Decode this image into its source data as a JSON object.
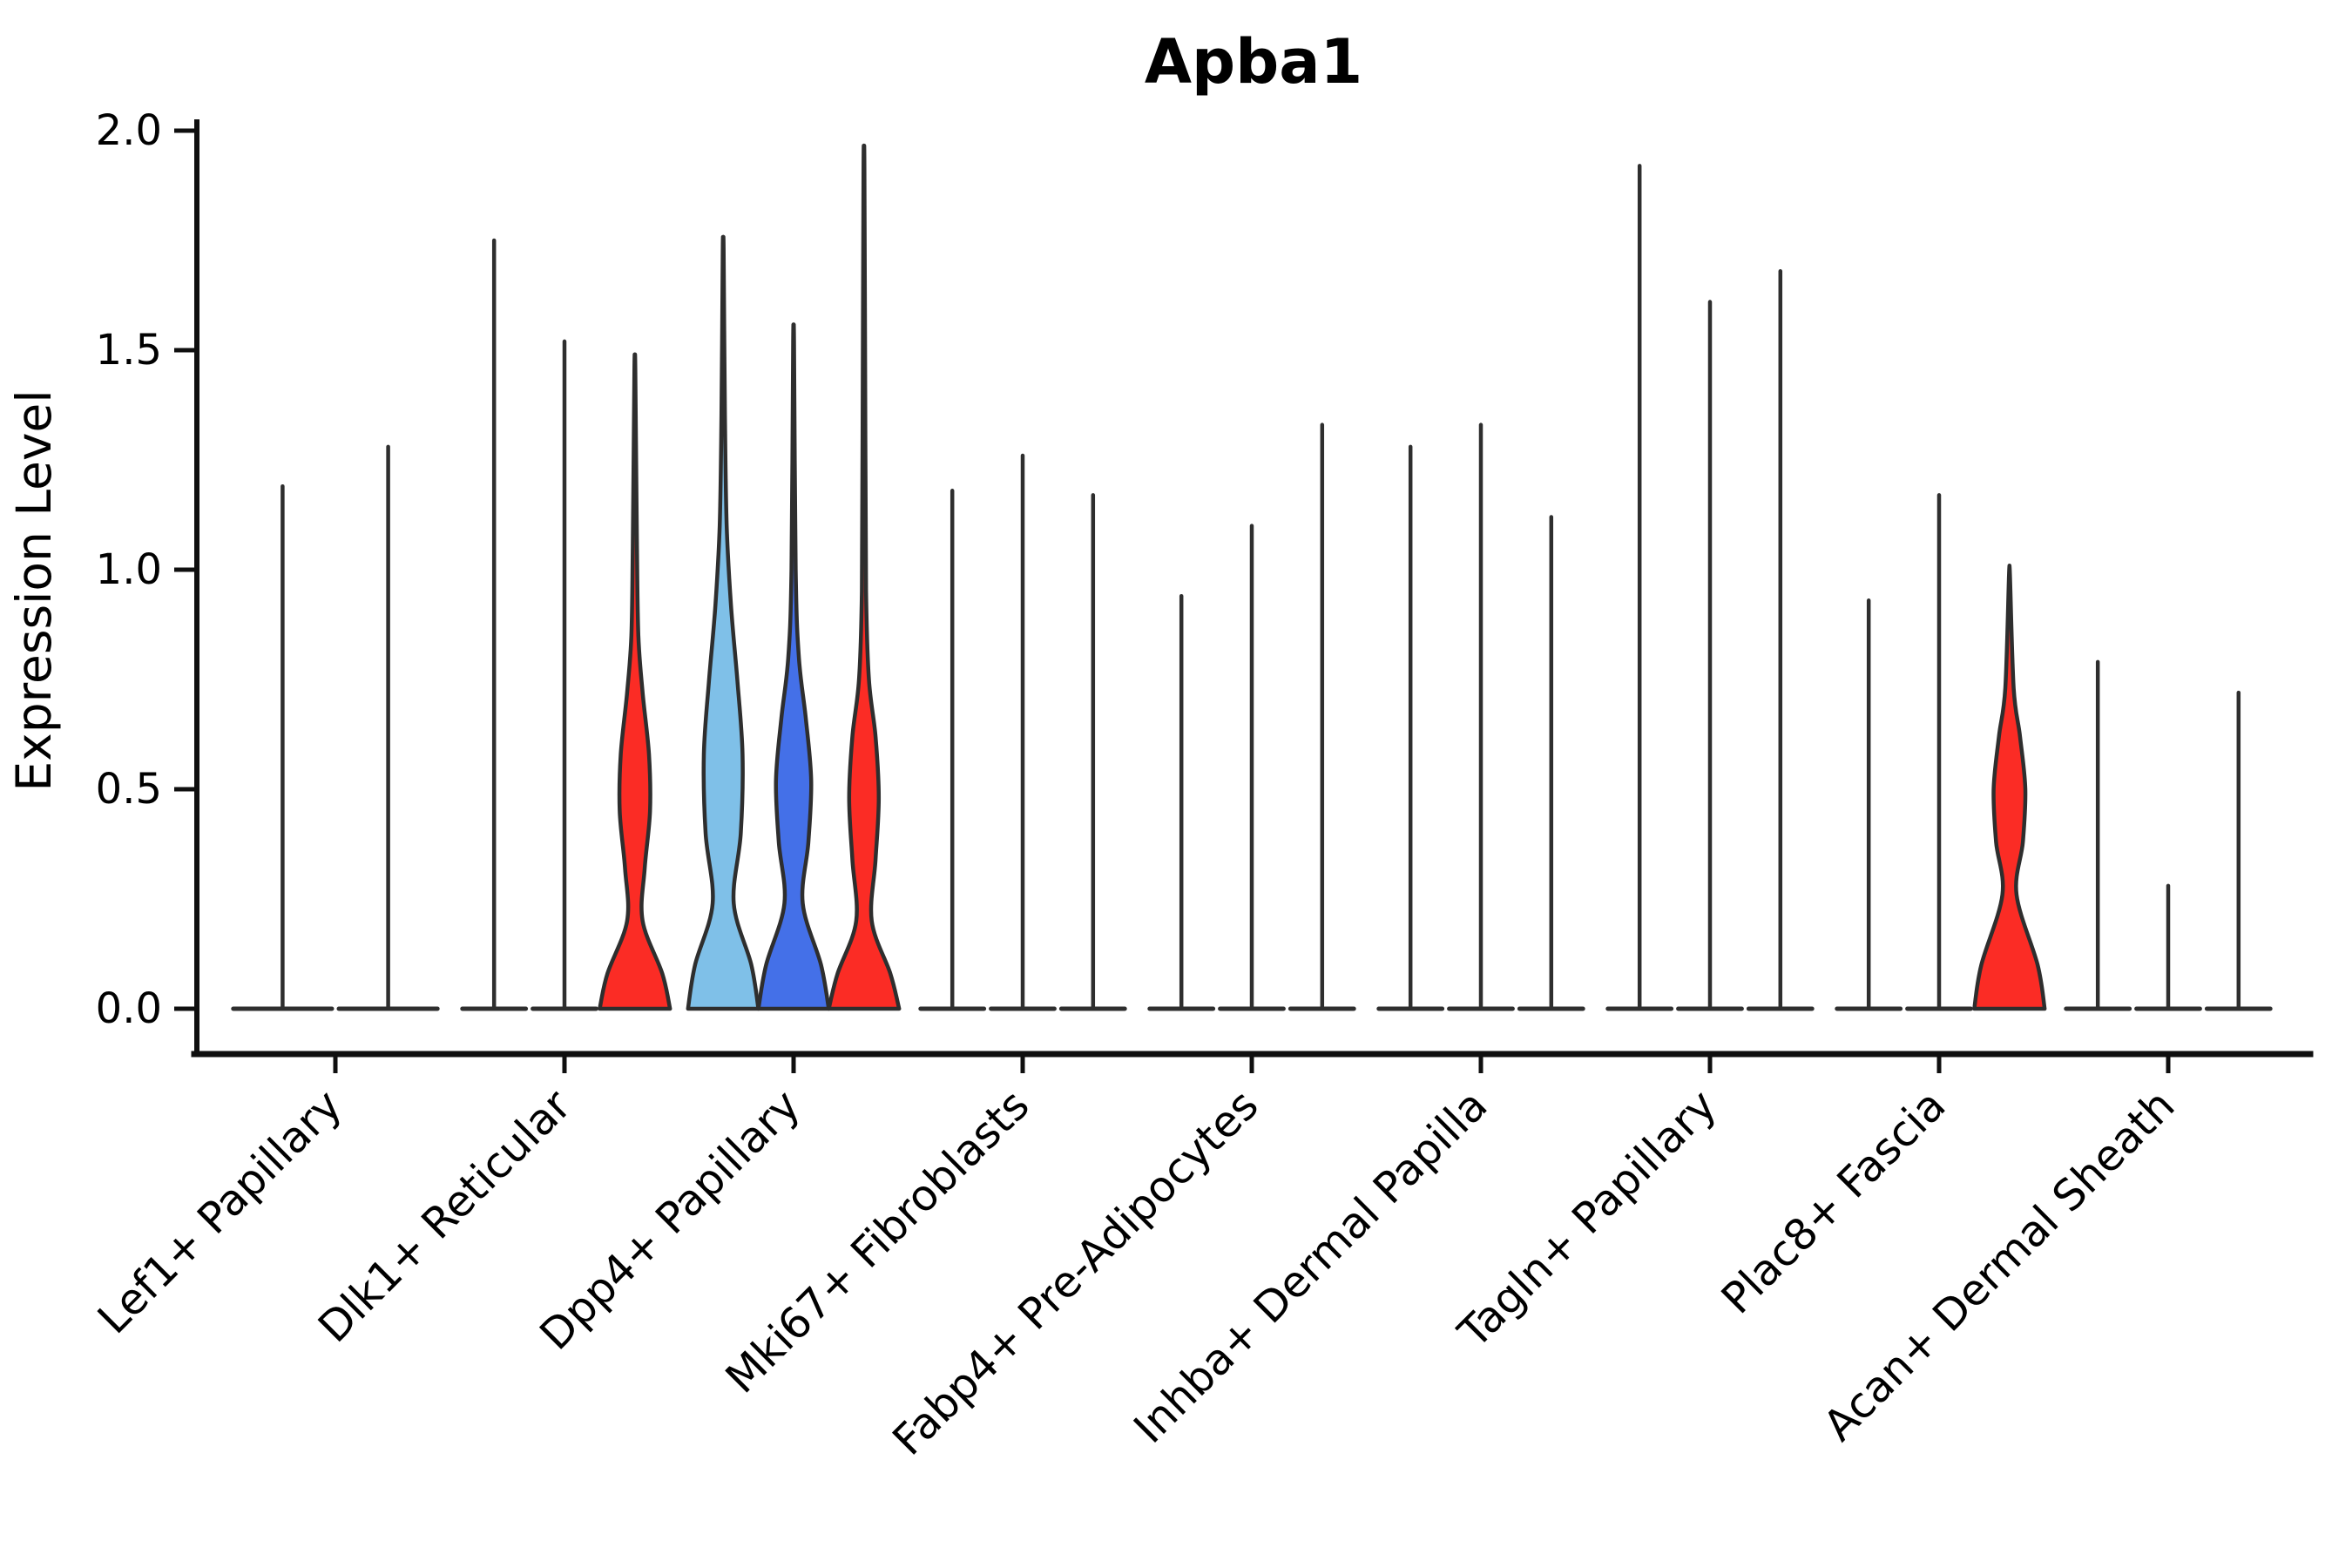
{
  "title": "Apba1",
  "ylabel": "Expression Level",
  "ytick_labels": [
    "0.0",
    "0.5",
    "1.0",
    "1.5",
    "2.0"
  ],
  "colors": {
    "red": "#fb2c25",
    "light_blue": "#7fc0e8",
    "blue": "#4470e8",
    "spike": "#2e2e2e",
    "axis": "#0f0f0f"
  },
  "chart_data": {
    "type": "violin",
    "title": "Apba1",
    "xlabel": "",
    "ylabel": "Expression Level",
    "ylim": [
      0,
      2
    ],
    "yticks": [
      0,
      0.5,
      1.0,
      1.5,
      2.0
    ],
    "grid": false,
    "legend": "none",
    "description": "Split violin plot of Apba1 expression per fibroblast cluster; most violins collapse to a baseline bar at 0 with a thin density spike up to the max expressed cell; a few violins have visible colored bodies.",
    "categories": [
      "Lef1+ Papillary",
      "Dlk1+ Reticular",
      "Dpp4+ Papillary",
      "Mki67+ Fibroblasts",
      "Fabp4+ Pre-Adipocytes",
      "Inhba+ Dermal Papilla",
      "Tagln+ Papillary",
      "Plac8+ Fascia",
      "Acan+ Dermal Sheath"
    ],
    "groups": [
      {
        "category": "Lef1+ Papillary",
        "violins": [
          {
            "max": 1.19,
            "fill": null
          },
          {
            "max": 1.28,
            "fill": null
          }
        ]
      },
      {
        "category": "Dlk1+ Reticular",
        "violins": [
          {
            "max": 1.75,
            "fill": null
          },
          {
            "max": 1.52,
            "fill": null
          },
          {
            "max": 1.46,
            "fill": "red",
            "profile": "red_mid"
          }
        ]
      },
      {
        "category": "Dpp4+ Papillary",
        "violins": [
          {
            "max": 1.73,
            "fill": "light_blue",
            "profile": "lightblue_big"
          },
          {
            "max": 1.52,
            "fill": "blue",
            "profile": "blue_big"
          },
          {
            "max": 1.92,
            "fill": "red",
            "profile": "red_tall"
          }
        ]
      },
      {
        "category": "Mki67+ Fibroblasts",
        "violins": [
          {
            "max": 1.18,
            "fill": null
          },
          {
            "max": 1.26,
            "fill": null
          },
          {
            "max": 1.17,
            "fill": null
          }
        ]
      },
      {
        "category": "Fabp4+ Pre-Adipocytes",
        "violins": [
          {
            "max": 0.94,
            "fill": null
          },
          {
            "max": 1.1,
            "fill": null
          },
          {
            "max": 1.33,
            "fill": null
          }
        ]
      },
      {
        "category": "Inhba+ Dermal Papilla",
        "violins": [
          {
            "max": 1.28,
            "fill": null
          },
          {
            "max": 1.33,
            "fill": null
          },
          {
            "max": 1.12,
            "fill": null
          }
        ]
      },
      {
        "category": "Tagln+ Papillary",
        "violins": [
          {
            "max": 1.92,
            "fill": null
          },
          {
            "max": 1.61,
            "fill": null
          },
          {
            "max": 1.68,
            "fill": null
          }
        ]
      },
      {
        "category": "Plac8+ Fascia",
        "violins": [
          {
            "max": 0.93,
            "fill": null
          },
          {
            "max": 1.17,
            "fill": null
          },
          {
            "max": 0.99,
            "fill": "red",
            "profile": "red_small"
          }
        ]
      },
      {
        "category": "Acan+ Dermal Sheath",
        "violins": [
          {
            "max": 0.79,
            "fill": null
          },
          {
            "max": 0.28,
            "fill": null
          },
          {
            "max": 0.72,
            "fill": null
          }
        ]
      }
    ],
    "body_profiles": {
      "red_mid": [
        [
          0,
          1.0
        ],
        [
          0.08,
          0.78
        ],
        [
          0.2,
          0.22
        ],
        [
          0.32,
          0.28
        ],
        [
          0.45,
          0.43
        ],
        [
          0.58,
          0.4
        ],
        [
          0.72,
          0.22
        ],
        [
          0.85,
          0.1
        ],
        [
          1.05,
          0.06
        ],
        [
          1.46,
          0.01
        ]
      ],
      "lightblue_big": [
        [
          0,
          1.0
        ],
        [
          0.1,
          0.8
        ],
        [
          0.24,
          0.3
        ],
        [
          0.4,
          0.5
        ],
        [
          0.58,
          0.55
        ],
        [
          0.75,
          0.4
        ],
        [
          0.92,
          0.22
        ],
        [
          1.1,
          0.1
        ],
        [
          1.35,
          0.05
        ],
        [
          1.73,
          0.01
        ]
      ],
      "blue_big": [
        [
          0,
          1.0
        ],
        [
          0.1,
          0.78
        ],
        [
          0.24,
          0.26
        ],
        [
          0.38,
          0.42
        ],
        [
          0.52,
          0.5
        ],
        [
          0.66,
          0.35
        ],
        [
          0.8,
          0.15
        ],
        [
          1.0,
          0.06
        ],
        [
          1.52,
          0.01
        ]
      ],
      "red_tall": [
        [
          0,
          1.0
        ],
        [
          0.08,
          0.75
        ],
        [
          0.2,
          0.22
        ],
        [
          0.34,
          0.33
        ],
        [
          0.48,
          0.42
        ],
        [
          0.62,
          0.33
        ],
        [
          0.75,
          0.14
        ],
        [
          0.95,
          0.06
        ],
        [
          1.3,
          0.04
        ],
        [
          1.92,
          0.01
        ]
      ],
      "red_small": [
        [
          0,
          1.0
        ],
        [
          0.1,
          0.8
        ],
        [
          0.26,
          0.2
        ],
        [
          0.38,
          0.38
        ],
        [
          0.5,
          0.45
        ],
        [
          0.62,
          0.3
        ],
        [
          0.73,
          0.12
        ],
        [
          0.99,
          0.01
        ]
      ]
    }
  }
}
